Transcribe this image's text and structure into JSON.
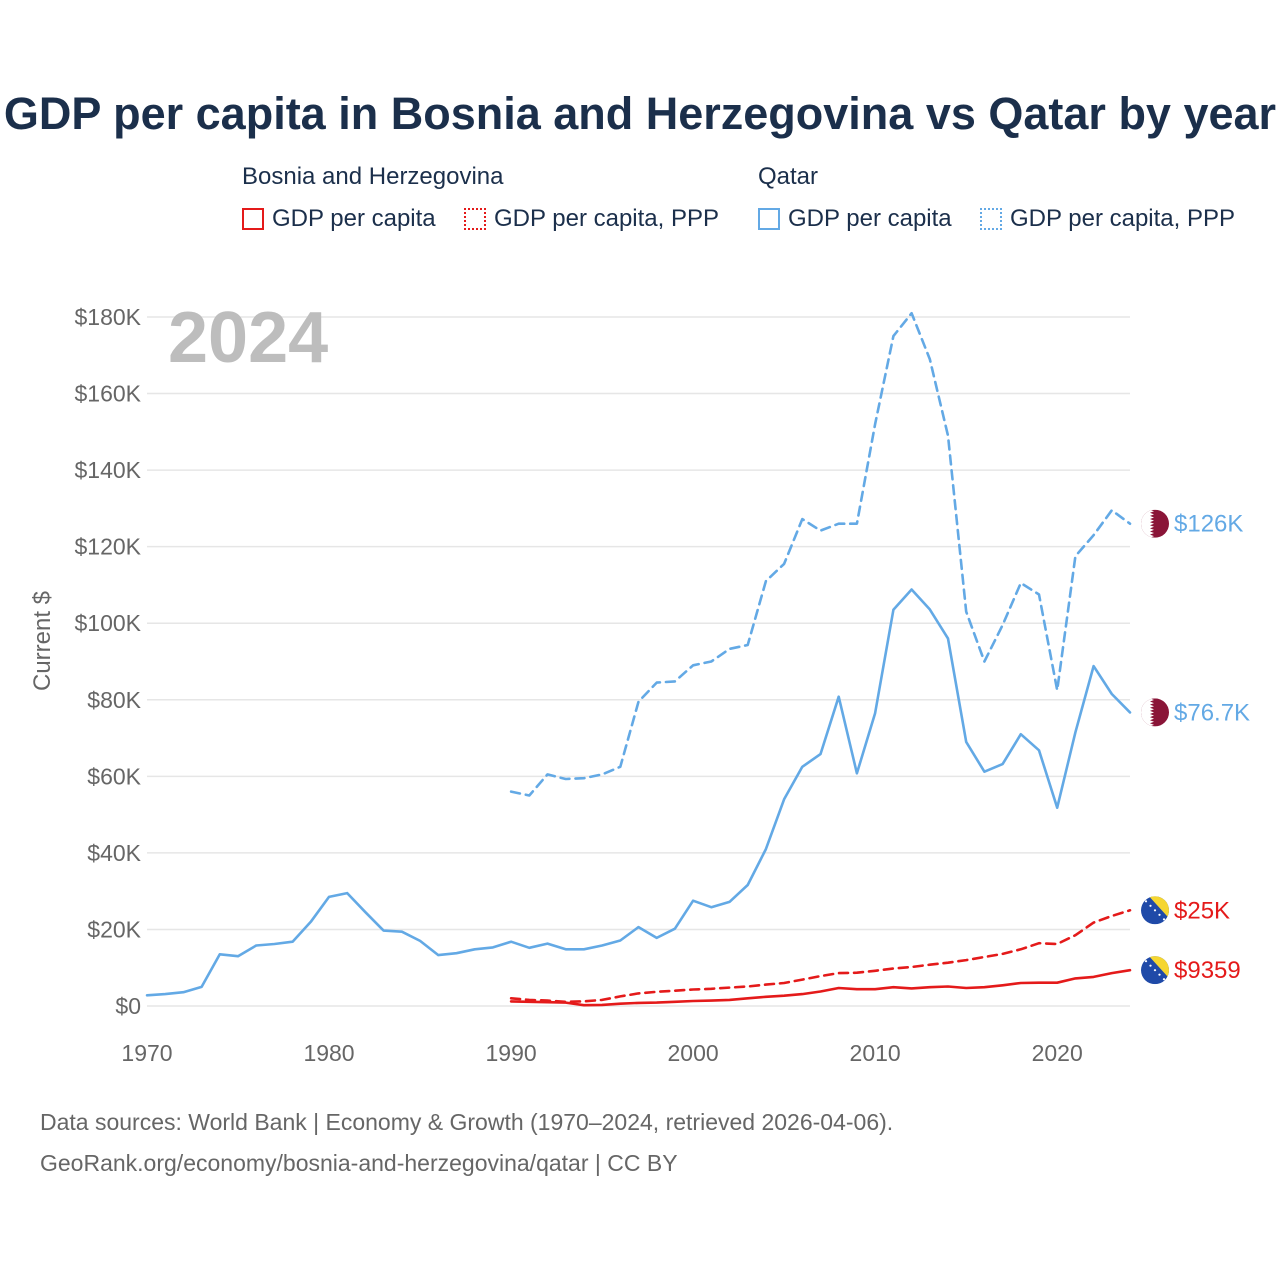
{
  "title": "GDP per capita in Bosnia and Herzegovina vs Qatar by year",
  "legend": {
    "groups": [
      {
        "country": "Bosnia and Herzegovina",
        "items": [
          "GDP per capita",
          "GDP per capita, PPP"
        ]
      },
      {
        "country": "Qatar",
        "items": [
          "GDP per capita",
          "GDP per capita, PPP"
        ]
      }
    ]
  },
  "footer": {
    "line1": "Data sources: World Bank | Economy & Growth (1970–2024, retrieved 2026-04-06).",
    "line2": "GeoRank.org/economy/bosnia-and-herzegovina/qatar | CC BY"
  },
  "colors": {
    "bosnia": "#e41a1a",
    "qatar": "#63a9e5",
    "grid": "#e6e6e6",
    "year_watermark": "#bdbdbd",
    "axis_text": "#666666",
    "qatar_flag": "#8a1538",
    "bosnia_flag_blue": "#1f4aa8",
    "bosnia_flag_yellow": "#f5d631"
  },
  "chart_data": {
    "type": "line",
    "title": "GDP per capita in Bosnia and Herzegovina vs Qatar by year",
    "year_label": "2024",
    "ylabel": "Current $",
    "xlabel": "",
    "xlim": [
      1970,
      2024
    ],
    "ylim": [
      0,
      180000
    ],
    "x_ticks": [
      1970,
      1980,
      1990,
      2000,
      2010,
      2020
    ],
    "y_ticks": [
      0,
      20000,
      40000,
      60000,
      80000,
      100000,
      120000,
      140000,
      160000,
      180000
    ],
    "y_tick_labels": [
      "$0",
      "$20K",
      "$40K",
      "$60K",
      "$80K",
      "$100K",
      "$120K",
      "$140K",
      "$160K",
      "$180K"
    ],
    "grid": true,
    "series": [
      {
        "name": "Qatar GDP per capita, PPP",
        "country": "qatar",
        "style": "dashed",
        "end_label": "$126K",
        "x": [
          1990,
          1991,
          1992,
          1993,
          1994,
          1995,
          1996,
          1997,
          1998,
          1999,
          2000,
          2001,
          2002,
          2003,
          2004,
          2005,
          2006,
          2007,
          2008,
          2009,
          2010,
          2011,
          2012,
          2013,
          2014,
          2015,
          2016,
          2017,
          2018,
          2019,
          2020,
          2021,
          2022,
          2023,
          2024
        ],
        "values": [
          56000,
          55000,
          60500,
          59300,
          59500,
          60500,
          62500,
          79500,
          84500,
          84800,
          89000,
          90000,
          93300,
          94300,
          111000,
          115500,
          127200,
          124200,
          126000,
          126000,
          152000,
          175000,
          181000,
          169000,
          149000,
          103000,
          90000,
          99500,
          110500,
          107500,
          82500,
          117500,
          123000,
          129500,
          126000
        ]
      },
      {
        "name": "Qatar GDP per capita",
        "country": "qatar",
        "style": "solid",
        "end_label": "$76.7K",
        "x": [
          1970,
          1971,
          1972,
          1973,
          1974,
          1975,
          1976,
          1977,
          1978,
          1979,
          1980,
          1981,
          1982,
          1983,
          1984,
          1985,
          1986,
          1987,
          1988,
          1989,
          1990,
          1991,
          1992,
          1993,
          1994,
          1995,
          1996,
          1997,
          1998,
          1999,
          2000,
          2001,
          2002,
          2003,
          2004,
          2005,
          2006,
          2007,
          2008,
          2009,
          2010,
          2011,
          2012,
          2013,
          2014,
          2015,
          2016,
          2017,
          2018,
          2019,
          2020,
          2021,
          2022,
          2023,
          2024
        ],
        "values": [
          2800,
          3100,
          3600,
          5000,
          13500,
          13000,
          15800,
          16200,
          16800,
          22000,
          28500,
          29500,
          24500,
          19700,
          19400,
          17000,
          13300,
          13800,
          14800,
          15300,
          16800,
          15200,
          16300,
          14800,
          14800,
          15800,
          17100,
          20600,
          17800,
          20200,
          27500,
          25800,
          27200,
          31600,
          41000,
          54000,
          62500,
          65800,
          80800,
          60800,
          76500,
          103500,
          108800,
          103600,
          96000,
          69000,
          61200,
          63200,
          71000,
          66800,
          51800,
          71500,
          88800,
          81500,
          76700
        ]
      },
      {
        "name": "Bosnia and Herzegovina GDP per capita, PPP",
        "country": "bosnia",
        "style": "dashed",
        "end_label": "$25K",
        "x": [
          1990,
          1991,
          1992,
          1993,
          1994,
          1995,
          1996,
          1997,
          1998,
          1999,
          2000,
          2001,
          2002,
          2003,
          2004,
          2005,
          2006,
          2007,
          2008,
          2009,
          2010,
          2011,
          2012,
          2013,
          2014,
          2015,
          2016,
          2017,
          2018,
          2019,
          2020,
          2021,
          2022,
          2023,
          2024
        ],
        "values": [
          2000,
          1600,
          1400,
          1100,
          1200,
          1600,
          2500,
          3300,
          3700,
          4000,
          4300,
          4500,
          4800,
          5100,
          5600,
          6000,
          6900,
          7800,
          8600,
          8700,
          9200,
          9800,
          10200,
          10800,
          11300,
          12000,
          12800,
          13600,
          14800,
          16400,
          16200,
          18500,
          21800,
          23500,
          25000
        ]
      },
      {
        "name": "Bosnia and Herzegovina GDP per capita",
        "country": "bosnia",
        "style": "solid",
        "end_label": "$9359",
        "x": [
          1990,
          1991,
          1992,
          1993,
          1994,
          1995,
          1996,
          1997,
          1998,
          1999,
          2000,
          2001,
          2002,
          2003,
          2004,
          2005,
          2006,
          2007,
          2008,
          2009,
          2010,
          2011,
          2012,
          2013,
          2014,
          2015,
          2016,
          2017,
          2018,
          2019,
          2020,
          2021,
          2022,
          2023,
          2024
        ],
        "values": [
          1200,
          1100,
          1000,
          900,
          200,
          300,
          600,
          800,
          900,
          1100,
          1300,
          1400,
          1600,
          2000,
          2400,
          2700,
          3100,
          3800,
          4700,
          4400,
          4400,
          4900,
          4600,
          4900,
          5100,
          4700,
          4900,
          5400,
          6000,
          6100,
          6100,
          7200,
          7600,
          8600,
          9359
        ]
      }
    ]
  }
}
